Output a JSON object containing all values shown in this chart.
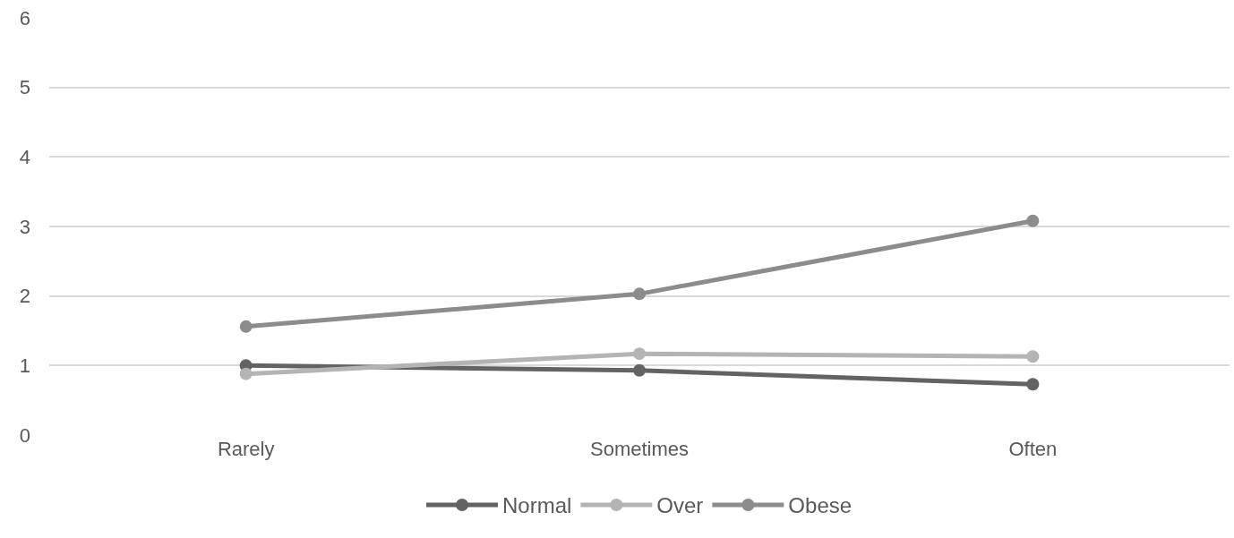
{
  "chart_data": {
    "type": "line",
    "categories": [
      "Rarely",
      "Sometimes",
      "Often"
    ],
    "series": [
      {
        "name": "Normal",
        "color": "#636363",
        "values": [
          1.0,
          0.93,
          0.73
        ]
      },
      {
        "name": "Over",
        "color": "#b4b4b4",
        "values": [
          0.88,
          1.17,
          1.13
        ]
      },
      {
        "name": "Obese",
        "color": "#8c8c8c",
        "values": [
          1.56,
          2.03,
          3.08
        ]
      }
    ],
    "ylim": [
      0,
      6
    ],
    "yticks": [
      0,
      1,
      2,
      3,
      4,
      5,
      6
    ],
    "grid": "y",
    "legend": "bottom",
    "marker": "circle",
    "line_style": "solid"
  }
}
